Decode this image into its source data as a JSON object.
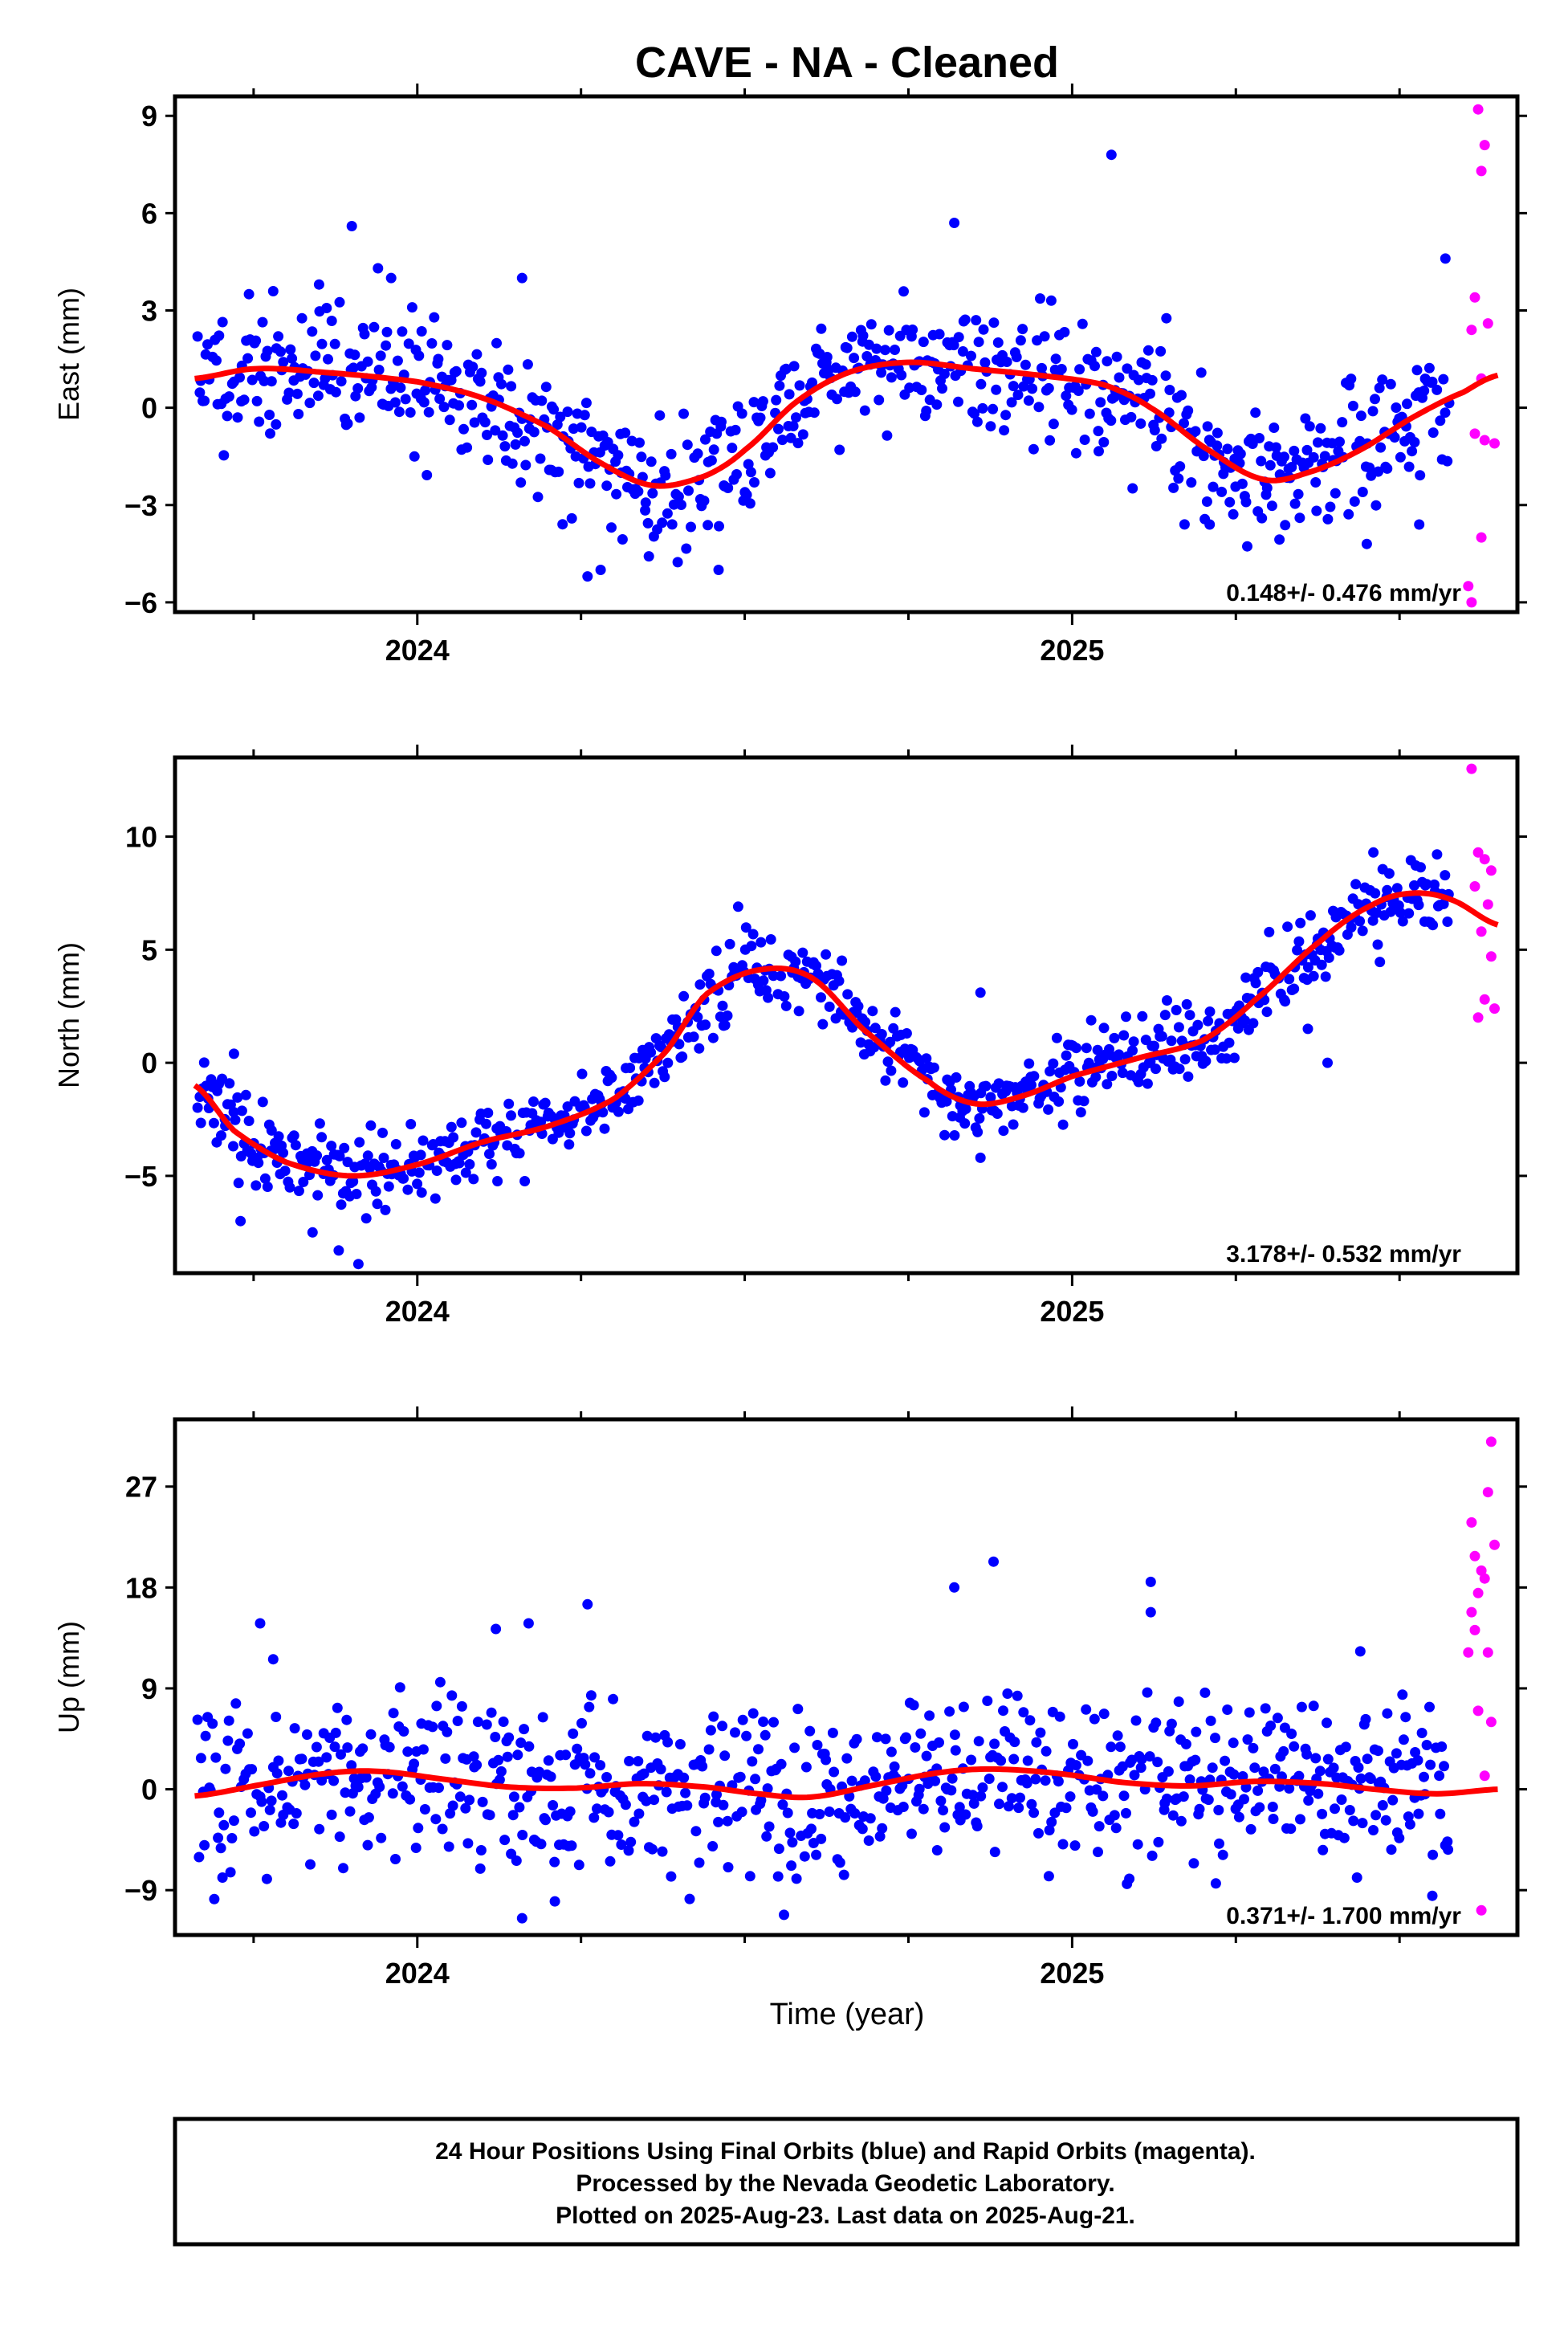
{
  "title": "CAVE  - NA - Cleaned",
  "footer": {
    "line1": "24 Hour Positions Using Final Orbits (blue) and Rapid Orbits (magenta).",
    "line2": "Processed by the Nevada Geodetic Laboratory.",
    "line3": "Plotted on 2025-Aug-23. Last data on 2025-Aug-21."
  },
  "colors": {
    "final": "#0000ff",
    "rapid": "#ff00ff",
    "fit": "#ff0000"
  },
  "xlabel": "Time (year)",
  "chart_data": [
    {
      "type": "scatter",
      "id": "east",
      "ylabel": "East (mm)",
      "rate": "0.148+/- 0.476 mm/yr",
      "xlim": [
        2023.63,
        2025.68
      ],
      "ylim": [
        -6.3,
        9.6
      ],
      "yticks": [
        -6,
        -3,
        0,
        3,
        6,
        9
      ],
      "xticks": [
        2024,
        2025
      ],
      "seed": 11,
      "fit": [
        [
          2023.66,
          0.9
        ],
        [
          2023.75,
          1.2
        ],
        [
          2023.85,
          1.1
        ],
        [
          2024.0,
          0.8
        ],
        [
          2024.1,
          0.3
        ],
        [
          2024.2,
          -0.6
        ],
        [
          2024.28,
          -1.7
        ],
        [
          2024.36,
          -2.4
        ],
        [
          2024.44,
          -2.1
        ],
        [
          2024.5,
          -1.3
        ],
        [
          2024.58,
          0.2
        ],
        [
          2024.66,
          1.1
        ],
        [
          2024.75,
          1.4
        ],
        [
          2024.85,
          1.2
        ],
        [
          2024.95,
          1.0
        ],
        [
          2025.05,
          0.7
        ],
        [
          2025.12,
          0.0
        ],
        [
          2025.2,
          -1.2
        ],
        [
          2025.29,
          -2.2
        ],
        [
          2025.36,
          -2.0
        ],
        [
          2025.44,
          -1.3
        ],
        [
          2025.52,
          -0.3
        ],
        [
          2025.6,
          0.5
        ],
        [
          2025.65,
          1.0
        ]
      ],
      "scatter_sigma": 1.0,
      "outliers": [
        [
          2023.9,
          5.6
        ],
        [
          2024.82,
          5.7
        ],
        [
          2025.06,
          7.8
        ],
        [
          2023.94,
          4.3
        ],
        [
          2023.85,
          3.8
        ],
        [
          2023.96,
          4.0
        ],
        [
          2024.16,
          4.0
        ],
        [
          2024.26,
          -5.2
        ],
        [
          2024.28,
          -5.0
        ],
        [
          2024.46,
          -5.0
        ],
        [
          2025.57,
          4.6
        ],
        [
          2025.45,
          -4.2
        ],
        [
          2025.21,
          -3.6
        ],
        [
          2025.53,
          -3.6
        ]
      ],
      "rapid": [
        [
          2025.62,
          9.2
        ],
        [
          2025.63,
          8.1
        ],
        [
          2025.625,
          7.3
        ],
        [
          2025.615,
          3.4
        ],
        [
          2025.635,
          2.6
        ],
        [
          2025.61,
          2.4
        ],
        [
          2025.625,
          0.9
        ],
        [
          2025.615,
          -0.8
        ],
        [
          2025.63,
          -1.0
        ],
        [
          2025.645,
          -1.1
        ],
        [
          2025.625,
          -4.0
        ],
        [
          2025.605,
          -5.5
        ],
        [
          2025.61,
          -6.0
        ]
      ]
    },
    {
      "type": "scatter",
      "id": "north",
      "ylabel": "North (mm)",
      "rate": "3.178+/- 0.532 mm/yr",
      "xlim": [
        2023.63,
        2025.68
      ],
      "ylim": [
        -9.3,
        13.5
      ],
      "yticks": [
        -5,
        0,
        5,
        10
      ],
      "xticks": [
        2024,
        2025
      ],
      "seed": 23,
      "fit": [
        [
          2023.66,
          -1.0
        ],
        [
          2023.72,
          -3.0
        ],
        [
          2023.8,
          -4.4
        ],
        [
          2023.9,
          -5.0
        ],
        [
          2024.0,
          -4.5
        ],
        [
          2024.1,
          -3.5
        ],
        [
          2024.2,
          -2.8
        ],
        [
          2024.3,
          -1.6
        ],
        [
          2024.38,
          0.5
        ],
        [
          2024.44,
          3.0
        ],
        [
          2024.52,
          4.1
        ],
        [
          2024.6,
          3.8
        ],
        [
          2024.68,
          1.5
        ],
        [
          2024.78,
          -0.8
        ],
        [
          2024.85,
          -1.8
        ],
        [
          2024.92,
          -1.5
        ],
        [
          2025.0,
          -0.6
        ],
        [
          2025.1,
          0.2
        ],
        [
          2025.2,
          1.0
        ],
        [
          2025.28,
          2.8
        ],
        [
          2025.38,
          5.4
        ],
        [
          2025.46,
          7.0
        ],
        [
          2025.52,
          7.5
        ],
        [
          2025.58,
          7.2
        ],
        [
          2025.65,
          6.1
        ]
      ],
      "scatter_sigma": 0.85,
      "outliers": [
        [
          2023.91,
          -8.9
        ],
        [
          2023.88,
          -8.3
        ],
        [
          2023.84,
          -7.5
        ],
        [
          2023.73,
          -7.0
        ],
        [
          2024.49,
          6.9
        ],
        [
          2024.86,
          3.1
        ],
        [
          2025.39,
          0.0
        ],
        [
          2025.36,
          1.5
        ],
        [
          2024.86,
          -4.2
        ],
        [
          2023.72,
          0.4
        ],
        [
          2025.46,
          9.3
        ]
      ],
      "rapid": [
        [
          2025.61,
          13.0
        ],
        [
          2025.62,
          9.3
        ],
        [
          2025.63,
          9.0
        ],
        [
          2025.64,
          8.5
        ],
        [
          2025.615,
          7.8
        ],
        [
          2025.635,
          7.0
        ],
        [
          2025.625,
          5.8
        ],
        [
          2025.64,
          4.7
        ],
        [
          2025.63,
          2.8
        ],
        [
          2025.645,
          2.4
        ],
        [
          2025.62,
          2.0
        ]
      ]
    },
    {
      "type": "scatter",
      "id": "up",
      "ylabel": "Up (mm)",
      "rate": "0.371+/- 1.700 mm/yr",
      "xlim": [
        2023.63,
        2025.68
      ],
      "ylim": [
        -13,
        33
      ],
      "yticks": [
        -9,
        0,
        9,
        18,
        27
      ],
      "xticks": [
        2024,
        2025
      ],
      "seed": 37,
      "fit": [
        [
          2023.66,
          -0.6
        ],
        [
          2023.76,
          0.4
        ],
        [
          2023.86,
          1.4
        ],
        [
          2023.94,
          1.6
        ],
        [
          2024.04,
          0.9
        ],
        [
          2024.14,
          0.2
        ],
        [
          2024.24,
          0.1
        ],
        [
          2024.34,
          0.5
        ],
        [
          2024.44,
          0.2
        ],
        [
          2024.52,
          -0.4
        ],
        [
          2024.6,
          -0.7
        ],
        [
          2024.7,
          0.4
        ],
        [
          2024.8,
          1.5
        ],
        [
          2024.88,
          1.8
        ],
        [
          2024.98,
          1.4
        ],
        [
          2025.08,
          0.6
        ],
        [
          2025.18,
          0.3
        ],
        [
          2025.28,
          0.7
        ],
        [
          2025.38,
          0.5
        ],
        [
          2025.48,
          -0.1
        ],
        [
          2025.56,
          -0.4
        ],
        [
          2025.65,
          0.0
        ]
      ],
      "scatter_sigma": 3.6,
      "outliers": [
        [
          2023.76,
          14.8
        ],
        [
          2024.12,
          14.3
        ],
        [
          2024.17,
          14.8
        ],
        [
          2024.26,
          16.5
        ],
        [
          2024.82,
          18.0
        ],
        [
          2024.88,
          20.3
        ],
        [
          2025.12,
          18.5
        ],
        [
          2025.12,
          15.8
        ],
        [
          2024.16,
          -11.5
        ],
        [
          2024.21,
          -10.0
        ],
        [
          2023.69,
          -9.8
        ],
        [
          2025.44,
          12.3
        ],
        [
          2025.55,
          -9.5
        ],
        [
          2023.78,
          11.6
        ]
      ],
      "rapid": [
        [
          2025.64,
          31.0
        ],
        [
          2025.635,
          26.5
        ],
        [
          2025.61,
          23.8
        ],
        [
          2025.645,
          21.8
        ],
        [
          2025.615,
          20.8
        ],
        [
          2025.625,
          19.5
        ],
        [
          2025.63,
          18.8
        ],
        [
          2025.62,
          17.5
        ],
        [
          2025.61,
          15.8
        ],
        [
          2025.615,
          14.2
        ],
        [
          2025.605,
          12.2
        ],
        [
          2025.635,
          12.2
        ],
        [
          2025.62,
          7.0
        ],
        [
          2025.64,
          6.0
        ],
        [
          2025.63,
          1.2
        ],
        [
          2025.625,
          -10.8
        ]
      ]
    }
  ]
}
